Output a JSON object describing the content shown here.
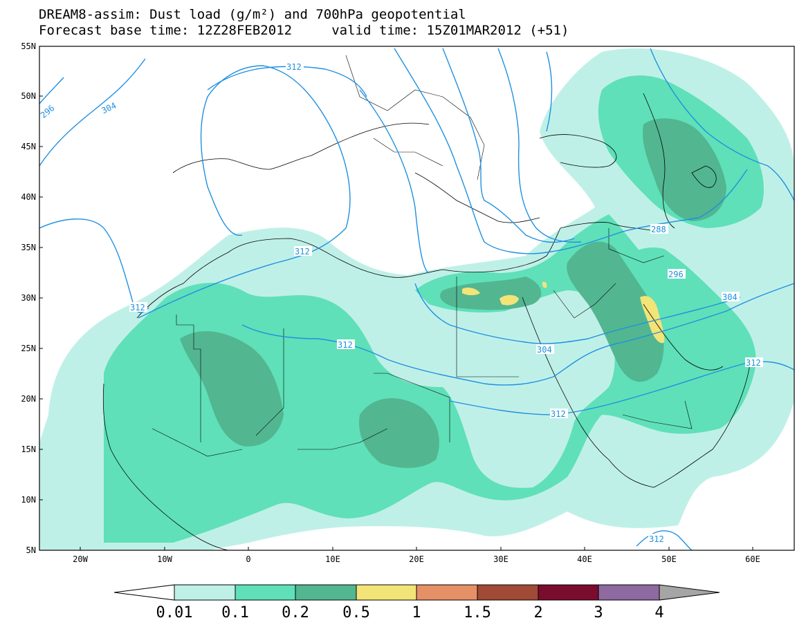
{
  "title": {
    "line1": "DREAM8-assim: Dust load (g/m²) and 700hPa geopotential",
    "line2": "Forecast base time: 12Z28FEB2012     valid time: 15Z01MAR2012 (+51)"
  },
  "axes": {
    "lat_labels": [
      "55N",
      "50N",
      "45N",
      "40N",
      "35N",
      "30N",
      "25N",
      "20N",
      "15N",
      "10N",
      "5N"
    ],
    "lon_labels": [
      "20W",
      "10W",
      "0",
      "10E",
      "20E",
      "30E",
      "40E",
      "50E",
      "60E"
    ]
  },
  "contour_labels": [
    "296",
    "304",
    "312",
    "312",
    "312",
    "312",
    "312",
    "304",
    "288",
    "296",
    "304",
    "312",
    "312"
  ],
  "colorbar": {
    "labels": [
      "0.01",
      "0.1",
      "0.2",
      "0.5",
      "1",
      "1.5",
      "2",
      "3",
      "4"
    ],
    "colors": [
      "#ffffff",
      "#bff0e8",
      "#5fe0b8",
      "#52b691",
      "#f3e478",
      "#e59066",
      "#a14a35",
      "#7a0c2e",
      "#8e6aa0",
      "#a5a5a5"
    ]
  },
  "colors": {
    "contour": "#1e90e0",
    "dust_001": "#bff0e8",
    "dust_01": "#5fe0b8",
    "dust_02": "#52b691",
    "dust_05": "#f3e478"
  }
}
